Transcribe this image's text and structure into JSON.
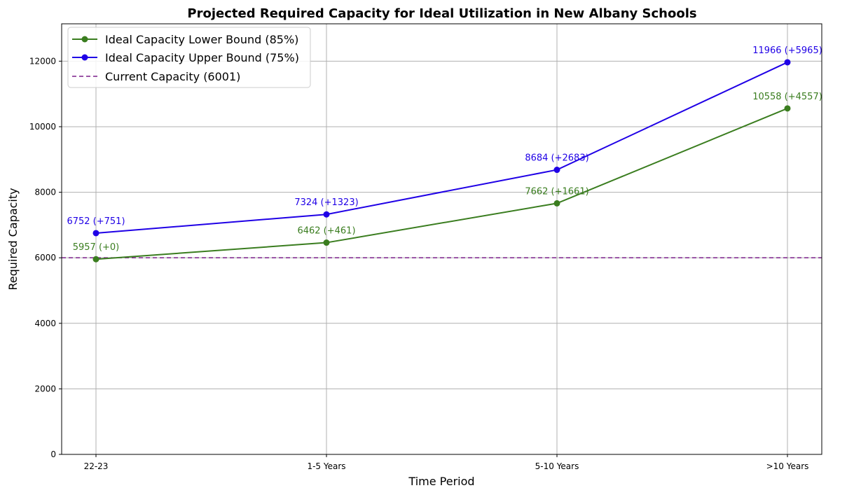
{
  "chart_data": {
    "type": "line",
    "title": "Projected Required Capacity for Ideal Utilization in New Albany Schools",
    "xlabel": "Time Period",
    "ylabel": "Required Capacity",
    "categories": [
      "22-23",
      "1-5 Years",
      "5-10 Years",
      ">10 Years"
    ],
    "ylim": [
      0,
      13140
    ],
    "yticks": [
      0,
      2000,
      4000,
      6000,
      8000,
      10000,
      12000
    ],
    "grid": true,
    "legend_position": "top-left",
    "series": [
      {
        "name": "Ideal Capacity Lower Bound (85%)",
        "color": "#3a7d1f",
        "marker": "circle",
        "values": [
          5957,
          6462,
          7662,
          10558
        ],
        "labels": [
          "5957 (+0)",
          "6462 (+461)",
          "7662 (+1661)",
          "10558 (+4557)"
        ]
      },
      {
        "name": "Ideal Capacity Upper Bound (75%)",
        "color": "#1f00e6",
        "marker": "circle",
        "values": [
          6752,
          7324,
          8684,
          11966
        ],
        "labels": [
          "6752 (+751)",
          "7324 (+1323)",
          "8684 (+2683)",
          "11966 (+5965)"
        ]
      }
    ],
    "reference_line": {
      "name": "Current Capacity (6001)",
      "value": 6001,
      "color": "#7b1f8a",
      "style": "dashed"
    }
  }
}
